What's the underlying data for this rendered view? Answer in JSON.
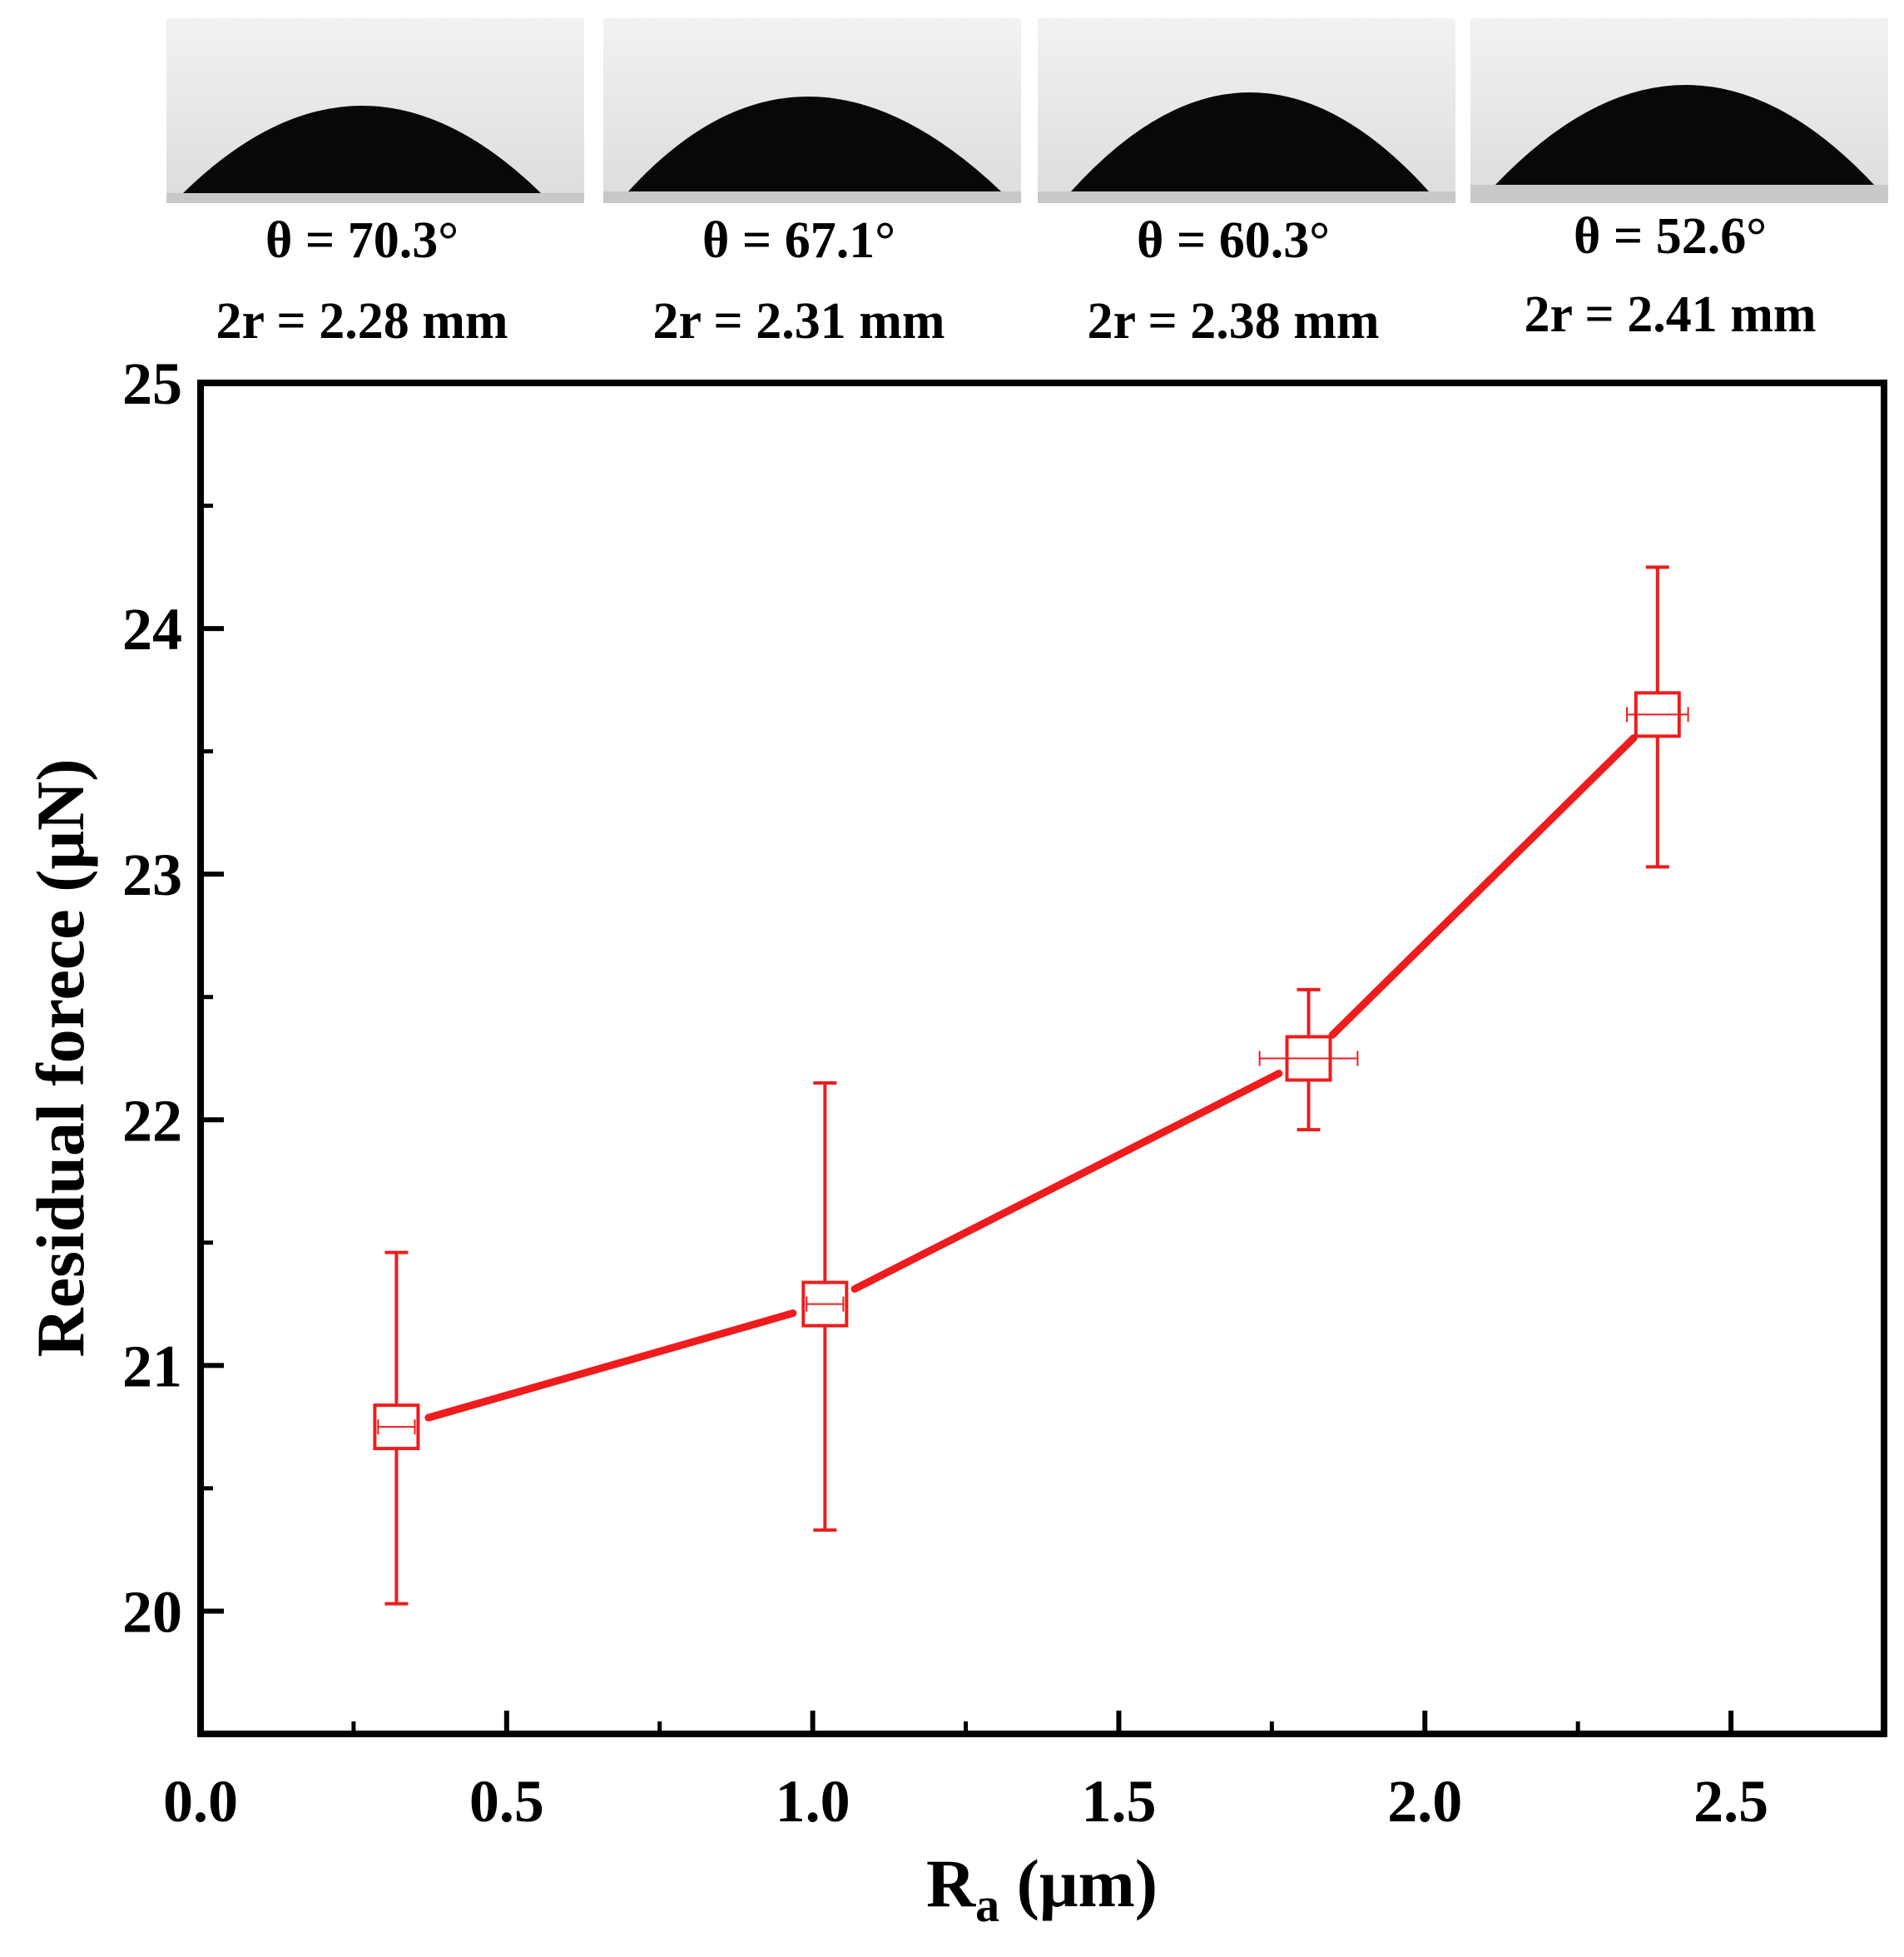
{
  "droplets": [
    {
      "angle": "θ = 70.3°",
      "diameter": "2r = 2.28 mm"
    },
    {
      "angle": "θ = 67.1°",
      "diameter": "2r = 2.31 mm"
    },
    {
      "angle": "θ = 60.3°",
      "diameter": "2r = 2.38 mm"
    },
    {
      "angle": "θ = 52.6°",
      "diameter": "2r = 2.41 mm"
    }
  ],
  "chart_data": {
    "type": "line",
    "title": "",
    "xlabel": {
      "main": "R",
      "sub": "a",
      "unit": " (μm)"
    },
    "ylabel": "Residual forece (μN)",
    "xlim": [
      0.0,
      2.75
    ],
    "ylim": [
      19.5,
      25.0
    ],
    "xticks": [
      "0.0",
      "0.5",
      "1.0",
      "1.5",
      "2.0",
      "2.5"
    ],
    "yticks": [
      "20",
      "21",
      "22",
      "23",
      "24",
      "25"
    ],
    "grid": false,
    "color": "#ee1c1c",
    "series": [
      {
        "name": "Residual force",
        "x": [
          0.32,
          1.02,
          1.81,
          2.38
        ],
        "y": [
          20.75,
          21.25,
          22.25,
          23.65
        ],
        "x_err": [
          0.03,
          0.03,
          0.08,
          0.05
        ],
        "y_err_low": [
          0.72,
          0.92,
          0.29,
          0.62
        ],
        "y_err_high": [
          0.71,
          0.9,
          0.28,
          0.6
        ]
      }
    ]
  }
}
